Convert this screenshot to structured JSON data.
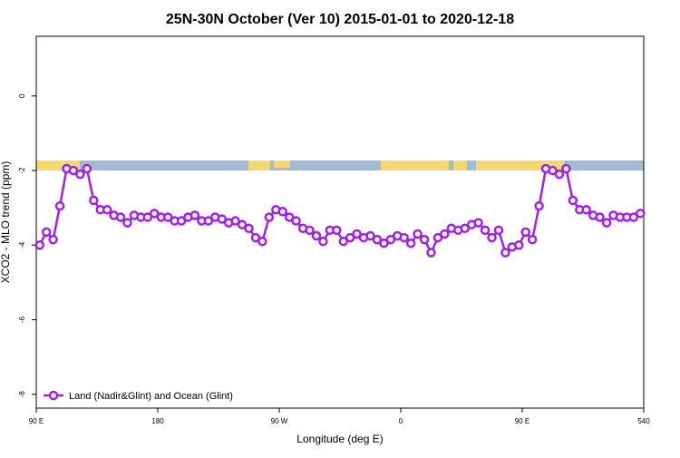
{
  "chart_data": {
    "type": "line",
    "title": "25N-30N October (Ver 10)   2015-01-01 to 2020-12-18",
    "x_label": "Longitude (deg E)",
    "y_label": "XCO2 - MLO trend (ppm)",
    "x": [
      92.5,
      97.5,
      102.5,
      107.5,
      112.5,
      117.5,
      122.5,
      127.5,
      132.5,
      137.5,
      142.5,
      147.5,
      152.5,
      157.5,
      162.5,
      167.5,
      172.5,
      177.5,
      182.5,
      187.5,
      192.5,
      197.5,
      202.5,
      207.5,
      212.5,
      217.5,
      222.5,
      227.5,
      232.5,
      237.5,
      242.5,
      247.5,
      252.5,
      257.5,
      262.5,
      267.5,
      272.5,
      277.5,
      282.5,
      287.5,
      292.5,
      297.5,
      302.5,
      307.5,
      312.5,
      317.5,
      322.5,
      327.5,
      332.5,
      337.5,
      342.5,
      347.5,
      352.5,
      357.5,
      362.5,
      367.5,
      372.5,
      377.5,
      382.5,
      387.5,
      392.5,
      397.5,
      402.5,
      407.5,
      412.5,
      417.5,
      422.5,
      427.5,
      432.5,
      437.5,
      442.5,
      447.5,
      452.5,
      457.5,
      462.5,
      467.5,
      472.5,
      477.5,
      482.5,
      487.5,
      492.5,
      497.5,
      502.5,
      507.5,
      512.5,
      517.5,
      522.5,
      527.5,
      532.5,
      537.5
    ],
    "series": [
      {
        "name": "Land (Nadir&Glint) and Ocean (Glint)",
        "color": "#a020f0",
        "values": [
          -4.0,
          -3.65,
          -3.85,
          -2.95,
          -1.95,
          -2.0,
          -2.1,
          -1.95,
          -2.8,
          -3.05,
          -3.05,
          -3.2,
          -3.25,
          -3.4,
          -3.2,
          -3.25,
          -3.25,
          -3.15,
          -3.25,
          -3.25,
          -3.35,
          -3.35,
          -3.25,
          -3.2,
          -3.35,
          -3.35,
          -3.25,
          -3.3,
          -3.4,
          -3.35,
          -3.45,
          -3.55,
          -3.8,
          -3.9,
          -3.25,
          -3.05,
          -3.1,
          -3.25,
          -3.35,
          -3.55,
          -3.6,
          -3.75,
          -3.9,
          -3.6,
          -3.6,
          -3.9,
          -3.8,
          -3.7,
          -3.8,
          -3.75,
          -3.85,
          -3.95,
          -3.85,
          -3.75,
          -3.8,
          -3.95,
          -3.7,
          -3.85,
          -4.2,
          -3.8,
          -3.7,
          -3.55,
          -3.6,
          -3.55,
          -3.45,
          -3.4,
          -3.6,
          -3.8,
          -3.6,
          -4.2,
          -4.05,
          -4.0,
          -3.65,
          -3.85,
          -2.95,
          -1.95,
          -2.0,
          -2.1,
          -1.95,
          -2.8,
          -3.05,
          -3.05,
          -3.2,
          -3.25,
          -3.4,
          -3.2,
          -3.25,
          -3.25,
          -3.25,
          -3.15
        ]
      }
    ],
    "xlim": [
      90,
      540
    ],
    "xticks": [
      {
        "value": 90,
        "label": "90 E"
      },
      180,
      {
        "value": 270,
        "label": "90 W"
      },
      {
        "value": 360,
        "label": "0"
      },
      {
        "value": 450,
        "label": "90 E"
      },
      540
    ],
    "ylim": [
      -8.37,
      1.6
    ],
    "yticks": [
      0,
      -2,
      -4,
      -6,
      -8
    ],
    "legend": "bottom-left"
  }
}
